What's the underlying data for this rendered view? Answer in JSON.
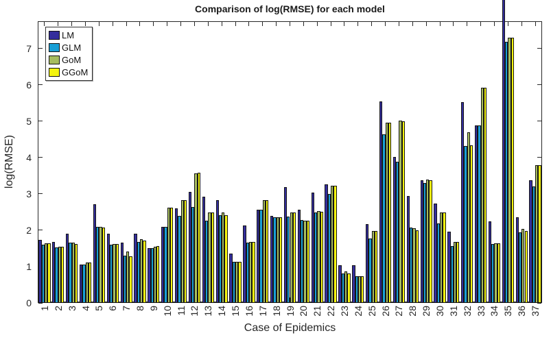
{
  "chart_data": {
    "type": "bar",
    "title": "Comparison of log(RMSE) for each model",
    "xlabel": "Case of Epidemics",
    "ylabel": "log(RMSE)",
    "grid": false,
    "legend_position": "top-left",
    "ylim": [
      0,
      7.75
    ],
    "y_ticks": [
      0,
      1,
      2,
      3,
      4,
      5,
      6,
      7
    ],
    "categories": [
      1,
      2,
      3,
      4,
      5,
      6,
      7,
      8,
      9,
      10,
      11,
      12,
      13,
      14,
      15,
      16,
      17,
      18,
      19,
      20,
      21,
      22,
      23,
      24,
      25,
      26,
      27,
      28,
      29,
      30,
      31,
      32,
      33,
      34,
      35,
      36,
      37
    ],
    "note": "Case 35 LM bar exceeds the axis top and is clipped by the figure edge",
    "series": [
      {
        "name": "LM",
        "color": "#342E9C",
        "values": [
          1.73,
          1.68,
          1.9,
          1.05,
          2.72,
          1.9,
          1.65,
          1.9,
          1.5,
          2.1,
          2.6,
          3.06,
          2.93,
          2.83,
          1.36,
          2.14,
          2.57,
          2.4,
          3.19,
          2.57,
          3.04,
          3.26,
          1.03,
          1.03,
          2.16,
          5.54,
          4.01,
          2.94,
          3.38,
          2.74,
          1.96,
          5.52,
          4.88,
          2.25,
          8.35,
          2.35,
          3.38
        ]
      },
      {
        "name": "GLM",
        "color": "#189FD6",
        "values": [
          1.6,
          1.52,
          1.65,
          1.05,
          2.1,
          1.6,
          1.3,
          1.68,
          1.5,
          2.09,
          2.4,
          2.64,
          2.26,
          2.42,
          1.13,
          1.66,
          2.57,
          2.36,
          2.38,
          2.28,
          2.48,
          2.99,
          0.81,
          0.74,
          1.77,
          4.63,
          3.89,
          2.08,
          3.3,
          2.18,
          1.57,
          4.31,
          4.88,
          1.62,
          7.19,
          1.94,
          3.21
        ]
      },
      {
        "name": "GoM",
        "color": "#A6BC5F",
        "values": [
          1.64,
          1.55,
          1.65,
          1.11,
          2.09,
          1.62,
          1.41,
          1.76,
          1.54,
          2.63,
          2.82,
          3.57,
          2.48,
          2.49,
          1.13,
          1.68,
          2.82,
          2.36,
          2.48,
          2.27,
          2.52,
          3.23,
          0.87,
          0.74,
          1.98,
          4.96,
          5.01,
          2.06,
          3.4,
          2.49,
          1.68,
          4.7,
          5.92,
          1.64,
          7.29,
          2.03,
          3.79
        ]
      },
      {
        "name": "GGoM",
        "color": "#F5F50F",
        "values": [
          1.64,
          1.55,
          1.63,
          1.12,
          2.07,
          1.62,
          1.29,
          1.71,
          1.56,
          2.63,
          2.82,
          3.59,
          2.48,
          2.42,
          1.13,
          1.68,
          2.82,
          2.36,
          2.48,
          2.27,
          2.51,
          3.23,
          0.81,
          0.74,
          1.98,
          4.95,
          5.0,
          2.0,
          3.38,
          2.49,
          1.68,
          4.33,
          5.92,
          1.64,
          7.29,
          1.98,
          3.79
        ]
      }
    ]
  }
}
